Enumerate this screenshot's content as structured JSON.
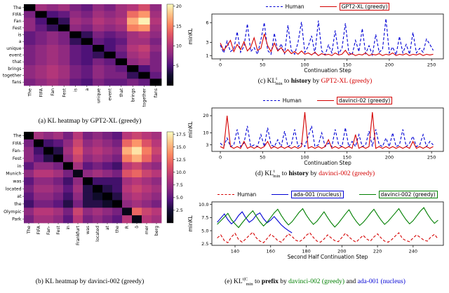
{
  "captions": {
    "a": "(a) KL heatmap by GPT2-XL (greedy)",
    "b": "(b) KL heatmap by davinci-002 (greedy)",
    "c": {
      "pre": "(c) ",
      "kl": "KL",
      "sup": "t",
      "sub": "min",
      "to": " to ",
      "key": "history",
      "by": " by ",
      "model": "GPT2-XL (greedy)"
    },
    "d": {
      "pre": "(d) ",
      "kl": "KL",
      "sup": "t",
      "sub": "min",
      "to": " to ",
      "key": "history",
      "by": " by ",
      "model": "davinci-002 (greedy)"
    },
    "e": {
      "pre": "(e) ",
      "kl": "KL",
      "sup": "t|C",
      "sub": "min",
      "to": " to ",
      "key": "prefix",
      "by": " by ",
      "model1": "davinci-002 (greedy)",
      "and": " and ",
      "model2": "ada-001 (nucleus)"
    }
  },
  "colors": {
    "red": "#d40000",
    "blue": "#0000d4",
    "green": "#007f00",
    "heat_low": "#000004",
    "heat_high": "#fcfdbf"
  },
  "chart_data": [
    {
      "type": "heatmap",
      "name": "kl-heatmap-gpt2xl",
      "caption": "(a) KL heatmap by GPT2-XL (greedy)",
      "x_labels": [
        "The",
        "FIFA",
        "Fan",
        "Fest",
        "is",
        "a",
        "unique",
        "event",
        "that",
        "brings",
        "together",
        "fans"
      ],
      "y_labels": [
        "The",
        "FIFA",
        "Fan",
        "Fest",
        "is",
        "a",
        "unique",
        "event",
        "that",
        "brings",
        "together",
        "fans"
      ],
      "vmin": 0,
      "vmax": 20.5,
      "colorbar_ticks": [
        5,
        10,
        15,
        20
      ],
      "colorbar_tick_labels": [
        "5",
        "10",
        "15",
        "20"
      ],
      "values": [
        [
          0,
          9,
          8,
          9,
          7,
          6,
          8,
          7,
          9,
          10,
          12,
          8
        ],
        [
          7,
          0,
          5,
          6,
          8,
          7,
          9,
          8,
          9,
          14,
          16,
          9
        ],
        [
          8,
          5,
          0,
          4,
          9,
          8,
          10,
          9,
          10,
          17,
          20,
          10
        ],
        [
          8,
          6,
          4,
          0,
          8,
          7,
          9,
          8,
          9,
          15,
          16,
          9
        ],
        [
          6,
          7,
          8,
          7,
          0,
          4,
          7,
          6,
          7,
          9,
          10,
          8
        ],
        [
          6,
          7,
          8,
          7,
          4,
          0,
          6,
          5,
          6,
          9,
          9,
          7
        ],
        [
          7,
          8,
          9,
          8,
          6,
          5,
          0,
          5,
          7,
          10,
          11,
          8
        ],
        [
          7,
          8,
          9,
          8,
          6,
          5,
          4,
          0,
          6,
          9,
          10,
          7
        ],
        [
          7,
          8,
          9,
          8,
          6,
          5,
          7,
          6,
          0,
          8,
          9,
          7
        ],
        [
          8,
          9,
          10,
          9,
          7,
          6,
          8,
          7,
          6,
          0,
          5,
          7
        ],
        [
          8,
          9,
          10,
          9,
          7,
          6,
          8,
          7,
          7,
          4,
          0,
          6
        ],
        [
          7,
          8,
          9,
          8,
          6,
          5,
          7,
          6,
          6,
          7,
          6,
          0
        ]
      ]
    },
    {
      "type": "heatmap",
      "name": "kl-heatmap-davinci002",
      "caption": "(b) KL heatmap by davinci-002 (greedy)",
      "x_labels": [
        "The",
        "FIFA",
        "Fan-",
        "Fest",
        "in",
        "Frankfurt",
        "was",
        "located",
        "at",
        "the",
        "R",
        "ö",
        "mer",
        "berg"
      ],
      "y_labels": [
        "The",
        "FIFA",
        "Fan-",
        "Fest",
        "in",
        "Munich",
        "was",
        "located",
        "at",
        "the",
        "Olympic",
        "Park"
      ],
      "vmin": 0,
      "vmax": 18,
      "colorbar_ticks": [
        2.5,
        5,
        7.5,
        10,
        12.5,
        15,
        17.5
      ],
      "colorbar_tick_labels": [
        "2.5",
        "5.0",
        "7.5",
        "10.0",
        "12.5",
        "15.0",
        "17.5"
      ],
      "values": [
        [
          0,
          8,
          7,
          8,
          6,
          9,
          6,
          7,
          6,
          5,
          9,
          10,
          9,
          8
        ],
        [
          6,
          0,
          4,
          5,
          7,
          10,
          7,
          8,
          7,
          6,
          12,
          14,
          11,
          9
        ],
        [
          7,
          4,
          0,
          3,
          8,
          11,
          8,
          9,
          8,
          7,
          15,
          17,
          13,
          10
        ],
        [
          7,
          5,
          3,
          0,
          7,
          10,
          7,
          8,
          7,
          6,
          13,
          15,
          12,
          9
        ],
        [
          5,
          7,
          7,
          6,
          0,
          8,
          5,
          6,
          5,
          4,
          9,
          10,
          8,
          7
        ],
        [
          7,
          9,
          9,
          8,
          6,
          1,
          7,
          8,
          7,
          6,
          11,
          12,
          10,
          9
        ],
        [
          5,
          7,
          7,
          6,
          4,
          7,
          0,
          4,
          4,
          4,
          8,
          9,
          8,
          7
        ],
        [
          6,
          8,
          8,
          7,
          5,
          8,
          3,
          0,
          3,
          4,
          9,
          10,
          9,
          8
        ],
        [
          5,
          7,
          7,
          6,
          4,
          7,
          3,
          2,
          0,
          3,
          8,
          9,
          8,
          7
        ],
        [
          4,
          6,
          6,
          5,
          3,
          6,
          3,
          3,
          2,
          0,
          7,
          8,
          7,
          6
        ],
        [
          7,
          9,
          9,
          8,
          6,
          10,
          7,
          8,
          7,
          6,
          1,
          12,
          10,
          9
        ],
        [
          6,
          8,
          8,
          7,
          5,
          9,
          6,
          7,
          6,
          5,
          9,
          1,
          9,
          8
        ]
      ]
    },
    {
      "type": "line",
      "name": "minkl-history-gpt2xl",
      "caption": "(c) KL^t_min to history by GPT2-XL (greedy)",
      "xlabel": "Continuation Step",
      "ylabel": "minKL",
      "xlim": [
        -10,
        264
      ],
      "ylim": [
        0.5,
        7.3
      ],
      "x_ticks": [
        0,
        50,
        100,
        150,
        200,
        250
      ],
      "y_ticks": [
        1,
        3,
        6
      ],
      "y_tick_labels": [
        "1",
        "3",
        "6"
      ],
      "legend_position": "top",
      "series": [
        {
          "name": "Human",
          "color": "#0000d4",
          "dash": true,
          "boxed": false,
          "x_start": 0,
          "x_step": 4,
          "values": [
            2.6,
            1.4,
            3.2,
            1.6,
            2.0,
            4.6,
            1.5,
            2.4,
            5.8,
            1.6,
            2.2,
            1.2,
            3.4,
            6.0,
            1.8,
            1.2,
            4.4,
            1.6,
            2.8,
            1.2,
            5.6,
            1.8,
            1.2,
            3.0,
            6.1,
            1.5,
            2.4,
            4.0,
            1.3,
            6.3,
            1.7,
            1.1,
            2.6,
            1.4,
            4.8,
            1.3,
            2.1,
            5.9,
            1.5,
            1.1,
            3.3,
            1.6,
            5.1,
            1.3,
            2.5,
            1.1,
            4.2,
            1.5,
            2.0,
            6.6,
            1.4,
            2.3,
            1.1,
            3.9,
            1.4,
            2.7,
            1.2,
            4.5,
            1.4,
            2.1,
            1.5,
            3.5,
            2.7,
            1.8
          ]
        },
        {
          "name": "GPT2-XL (greedy)",
          "color": "#d40000",
          "dash": false,
          "boxed": true,
          "x_start": 0,
          "x_step": 4,
          "values": [
            2.9,
            1.8,
            2.5,
            3.3,
            1.6,
            2.7,
            1.9,
            3.1,
            1.7,
            2.3,
            3.7,
            1.8,
            2.1,
            4.3,
            2.5,
            1.6,
            2.9,
            1.7,
            2.2,
            1.4,
            1.9,
            1.3,
            1.6,
            1.2,
            1.7,
            1.2,
            1.4,
            1.1,
            1.5,
            1.0,
            1.3,
            1.1,
            1.2,
            1.0,
            1.4,
            1.1,
            1.2,
            1.8,
            1.1,
            1.3,
            1.0,
            1.2,
            1.1,
            1.4,
            1.0,
            1.2,
            1.1,
            1.3,
            1.0,
            1.2,
            1.1,
            1.4,
            1.0,
            1.2,
            1.1,
            1.3,
            1.0,
            1.2,
            1.1,
            1.3,
            1.0,
            1.2,
            1.1,
            1.2
          ]
        }
      ]
    },
    {
      "type": "line",
      "name": "minkl-history-davinci002",
      "caption": "(d) KL^t_min to history by davinci-002 (greedy)",
      "xlabel": "Continuation Step",
      "ylabel": "minKL",
      "xlim": [
        -10,
        264
      ],
      "ylim": [
        -0.8,
        24.5
      ],
      "x_ticks": [
        0,
        50,
        100,
        150,
        200,
        250
      ],
      "y_ticks": [
        3,
        10,
        20
      ],
      "y_tick_labels": [
        "3",
        "10",
        "20"
      ],
      "legend_position": "top",
      "series": [
        {
          "name": "Human",
          "color": "#0000d4",
          "dash": true,
          "boxed": false,
          "x_start": 0,
          "x_step": 4,
          "values": [
            4,
            2,
            7,
            2,
            3,
            12,
            2,
            4,
            14,
            2,
            3,
            2,
            9,
            2,
            13,
            3,
            2,
            6,
            2,
            11,
            2,
            3,
            12,
            2,
            4,
            2,
            8,
            14,
            2,
            3,
            10,
            2,
            4,
            2,
            12,
            3,
            2,
            13,
            2,
            5,
            2,
            9,
            2,
            3,
            11,
            2,
            12,
            3,
            2,
            7,
            2,
            10,
            2,
            3,
            12,
            2,
            4,
            8,
            2,
            3,
            9,
            2,
            5,
            3
          ]
        },
        {
          "name": "davinci-02 (greedy)",
          "color": "#d40000",
          "dash": false,
          "boxed": true,
          "x_start": 0,
          "x_step": 4,
          "values": [
            2,
            1,
            20,
            2,
            1,
            2,
            1,
            5,
            1,
            2,
            1,
            2,
            1,
            2,
            5,
            1,
            2,
            1,
            2,
            1,
            2,
            1,
            2,
            1,
            2,
            22,
            1,
            2,
            1,
            2,
            1,
            2,
            6,
            1,
            2,
            1,
            2,
            1,
            2,
            1,
            9,
            1,
            2,
            1,
            2,
            22,
            1,
            2,
            1,
            2,
            1,
            2,
            1,
            2,
            1,
            2,
            1,
            5,
            1,
            2,
            1,
            2,
            1,
            2
          ]
        }
      ]
    },
    {
      "type": "line",
      "name": "minkl-prefix-davinci002-ada001",
      "caption": "(e) KL^t|C_min to prefix by davinci-002 (greedy) and ada-001 (nucleus)",
      "xlabel": "Second Half Continuation Step",
      "ylabel": "minKL",
      "xlim": [
        127,
        257
      ],
      "ylim": [
        2.2,
        10.5
      ],
      "x_ticks": [
        140,
        160,
        180,
        200,
        220,
        240
      ],
      "y_ticks": [
        2.5,
        5,
        7.5,
        10
      ],
      "y_tick_labels": [
        "2.5",
        "5.0",
        "7.5",
        "10.0"
      ],
      "legend_position": "top",
      "series": [
        {
          "name": "Human",
          "color": "#d40000",
          "dash": true,
          "boxed": false,
          "x_start": 130,
          "x_step": 2,
          "values": [
            3.6,
            4.2,
            3.1,
            2.7,
            3.8,
            4.5,
            3.3,
            2.8,
            3.4,
            4.1,
            4.7,
            3.6,
            3.0,
            2.7,
            3.5,
            4.3,
            3.8,
            3.1,
            2.8,
            3.6,
            4.4,
            3.9,
            3.2,
            2.9,
            3.3,
            4.1,
            4.6,
            3.7,
            3.0,
            2.8,
            3.4,
            4.2,
            3.6,
            3.1,
            2.9,
            3.7,
            4.5,
            3.8,
            3.2,
            2.8,
            3.5,
            4.1,
            3.4,
            3.0,
            3.8,
            4.4,
            3.6,
            3.0,
            2.8,
            3.3,
            4.0,
            4.6,
            3.5,
            3.1,
            2.9,
            3.6,
            4.2,
            3.7,
            3.2,
            3.0,
            3.8,
            4.3,
            3.4
          ]
        },
        {
          "name": "ada-001 (nucleus)",
          "color": "#0000d4",
          "dash": false,
          "boxed": true,
          "x_start": 130,
          "x_step": 2,
          "values": [
            6.6,
            7.4,
            8.2,
            7.1,
            6.3,
            6.9,
            7.9,
            8.6,
            7.5,
            6.6,
            7.1,
            8.0,
            8.4,
            7.3,
            6.5,
            7.0,
            7.7,
            6.9,
            6.1,
            5.5,
            5.0,
            4.6
          ]
        },
        {
          "name": "davinci-002 (greedy)",
          "color": "#007f00",
          "dash": false,
          "boxed": true,
          "x_start": 130,
          "x_step": 2,
          "values": [
            6.2,
            6.9,
            7.6,
            8.3,
            7.1,
            6.3,
            5.6,
            6.5,
            7.3,
            8.1,
            8.8,
            7.7,
            6.7,
            5.9,
            6.6,
            7.5,
            8.4,
            9.1,
            7.9,
            6.9,
            6.1,
            6.7,
            7.6,
            8.5,
            9.2,
            8.0,
            7.0,
            6.2,
            6.8,
            7.7,
            8.6,
            7.5,
            6.5,
            5.7,
            6.4,
            7.3,
            8.2,
            9.0,
            7.8,
            6.8,
            6.0,
            6.6,
            7.4,
            8.3,
            9.1,
            8.0,
            7.0,
            6.2,
            6.8,
            7.6,
            8.4,
            9.2,
            8.1,
            7.1,
            6.3,
            6.9,
            7.8,
            8.7,
            9.4,
            8.2,
            7.2,
            6.4,
            7.0
          ]
        }
      ]
    }
  ]
}
